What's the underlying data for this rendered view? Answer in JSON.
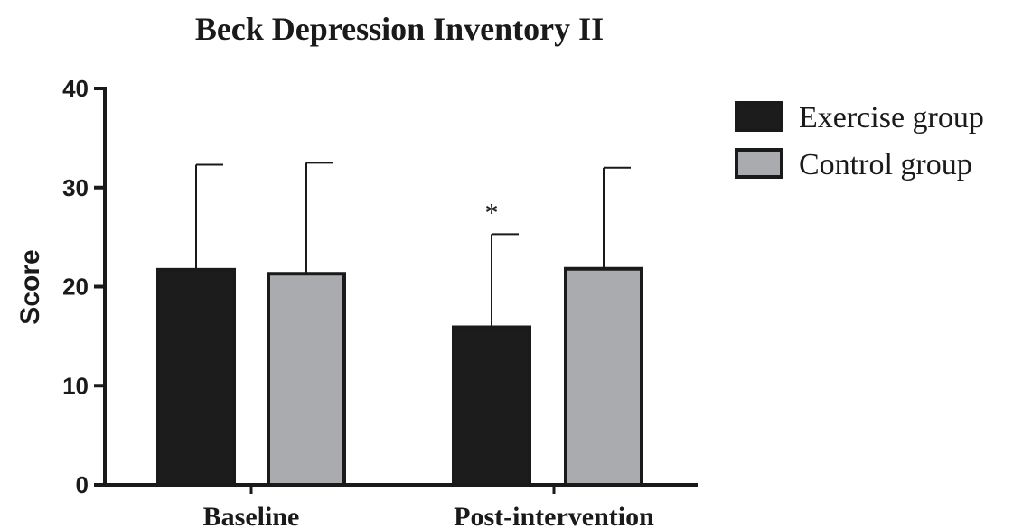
{
  "chart_data": {
    "type": "bar",
    "title": "Beck Depression Inventory II",
    "xlabel": "",
    "ylabel": "Score",
    "ylim": [
      0,
      40
    ],
    "yticks": [
      "0",
      "10",
      "20",
      "30",
      "40"
    ],
    "categories": [
      "Baseline",
      "Post-intervention"
    ],
    "series": [
      {
        "name": "Exercise group",
        "color": "#1c1c1c",
        "values": [
          21.7,
          15.9
        ],
        "error_upper": [
          32.3,
          25.3
        ]
      },
      {
        "name": "Control group",
        "color": "#a9abae",
        "values": [
          21.3,
          21.8
        ],
        "error_upper": [
          32.5,
          32.0
        ]
      }
    ],
    "annotations": [
      {
        "text": "*",
        "category": "Post-intervention",
        "series": "Exercise group"
      }
    ],
    "legend_position": "right",
    "grid": false
  }
}
